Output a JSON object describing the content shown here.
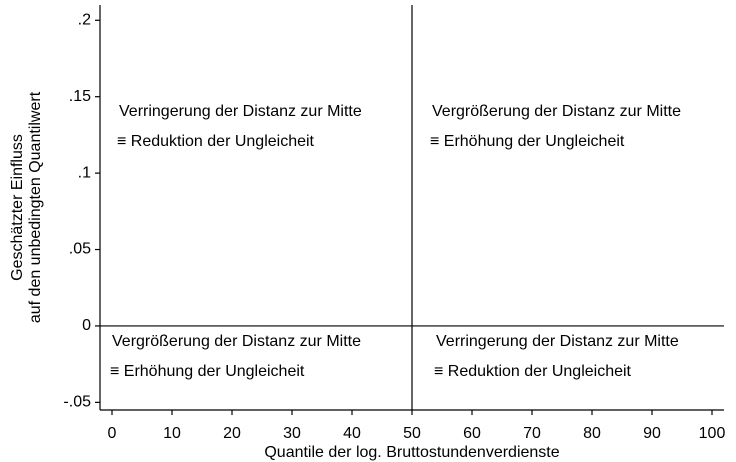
{
  "chart_data": {
    "type": "quadrant",
    "ylabel": [
      "Geschätzter Einfluss",
      "auf den unbedingten Quantilwert"
    ],
    "xlabel": "Quantile der log. Bruttostundenverdienste",
    "xlim": [
      -2,
      102
    ],
    "xticks": [
      0,
      10,
      20,
      30,
      40,
      50,
      60,
      70,
      80,
      90,
      100
    ],
    "ylim": [
      -0.055,
      0.21
    ],
    "yticks": [
      {
        "value": -0.05,
        "label": "-.05"
      },
      0,
      {
        "value": 0.05,
        "label": ".05"
      },
      {
        "value": 0.1,
        "label": ".1"
      },
      {
        "value": 0.15,
        "label": ".15"
      },
      {
        "value": 0.2,
        "label": ".2"
      }
    ],
    "reference_lines": {
      "x": 50,
      "y": 0
    },
    "annotations": [
      [
        "Verringerung der Distanz zur Mitte",
        "≡ Reduktion der Ungleicheit"
      ],
      [
        "Vergrößerung der Distanz zur Mitte",
        "≡ Erhöhung der Ungleicheit"
      ],
      [
        "Vergrößerung der Distanz zur Mitte",
        "≡ Erhöhung der Ungleicheit"
      ],
      [
        "Verringerung der Distanz zur Mitte",
        "≡ Reduktion der Ungleicheit"
      ]
    ]
  }
}
